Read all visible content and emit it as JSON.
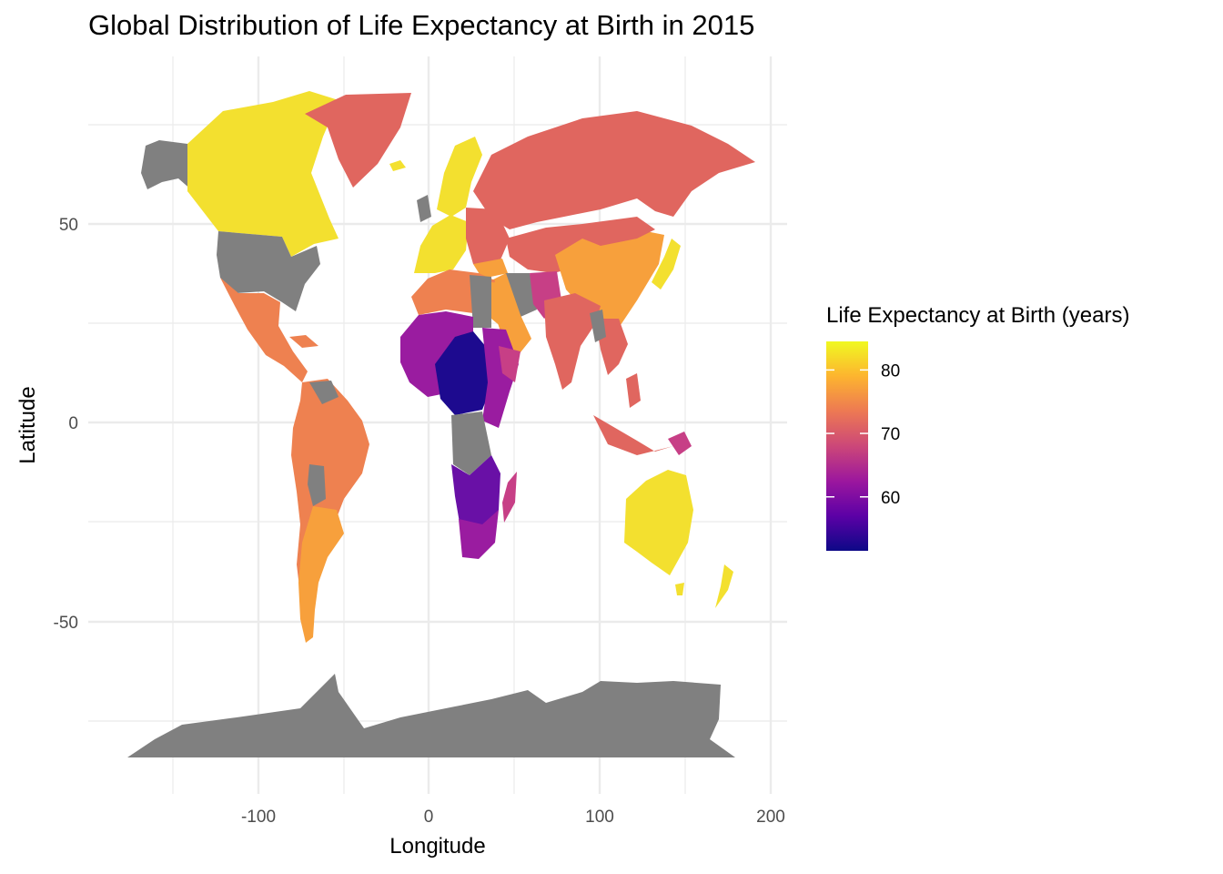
{
  "title": "Global Distribution of Life Expectancy at Birth in 2015",
  "x_axis": {
    "label": "Longitude",
    "ticks": [
      "-100",
      "0",
      "100",
      "200"
    ]
  },
  "y_axis": {
    "label": "Latitude",
    "ticks": [
      "50",
      "0",
      "-50"
    ]
  },
  "legend": {
    "title": "Life Expectancy at Birth (years)",
    "labels": [
      "80",
      "70",
      "60"
    ],
    "gradient_colors": [
      "#f0f921",
      "#fdb42f",
      "#ed7953",
      "#cc4778",
      "#9c179e",
      "#5c01a6",
      "#0d0887"
    ],
    "range": [
      51.5,
      84.5
    ],
    "tick_values": [
      80,
      70,
      60
    ]
  },
  "colors": {
    "no_data": "#808080",
    "high": "#f3e02f",
    "upper_mid": "#f7a03c",
    "mid_orange": "#ee8150",
    "mid": "#e0665f",
    "lower_mid": "#c73f86",
    "low": "#9a1ca0",
    "very_low": "#6910a6",
    "lowest": "#1d0a8f"
  }
}
